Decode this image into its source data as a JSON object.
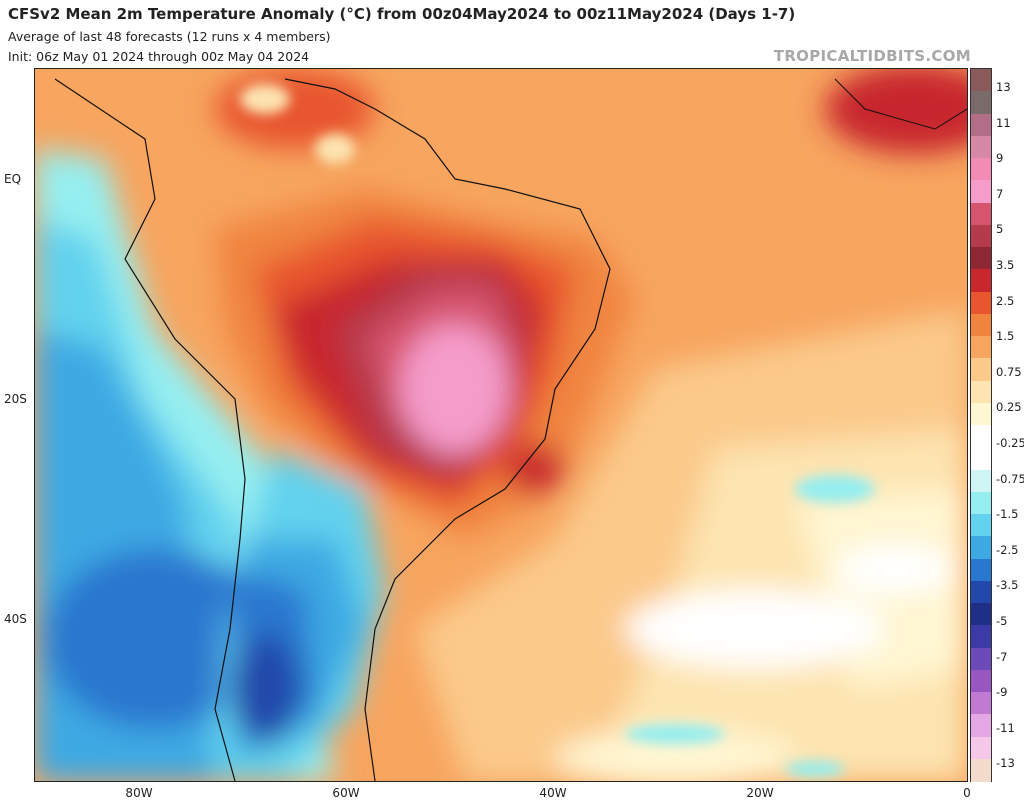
{
  "header": {
    "title": "CFSv2 Mean 2m Temperature Anomaly (°C) from 00z04May2024 to 00z11May2024 (Days 1-7)",
    "subtitle1": "Average of last 48 forecasts (12 runs x 4 members)",
    "subtitle2": "Init: 06z May 01 2024 through 00z May 04 2024",
    "brand": "TROPICALTIDBITS.COM"
  },
  "axes": {
    "lat_labels": [
      "EQ",
      "20S",
      "40S"
    ],
    "lon_labels": [
      "80W",
      "60W",
      "40W",
      "20W",
      "0"
    ]
  },
  "colorbar": {
    "labels": [
      "13",
      "11",
      "9",
      "7",
      "5",
      "3.5",
      "2.5",
      "1.5",
      "0.75",
      "0.25",
      "-0.25",
      "-0.75",
      "-1.5",
      "-2.5",
      "-3.5",
      "-5",
      "-7",
      "-9",
      "-11",
      "-13"
    ],
    "colors": [
      "#8a5a5a",
      "#7b6a6a",
      "#b26d87",
      "#d689a5",
      "#f28cb5",
      "#f59ccb",
      "#d7546e",
      "#b53a4c",
      "#8c2733",
      "#c8282d",
      "#e8552f",
      "#f0843f",
      "#f7a55f",
      "#fbc98a",
      "#fde4b0",
      "#fff6d2",
      "#ffffff",
      "#ffffff",
      "#cff6f4",
      "#95eef0",
      "#62d2ee",
      "#3da9e3",
      "#2a77cf",
      "#2348ab",
      "#1f2f85",
      "#3b3aa6",
      "#6c4bb8",
      "#9856c0",
      "#c07ad2",
      "#e3a8e3",
      "#f5c8ea",
      "#f4dccc"
    ]
  },
  "map": {
    "region": "South America and South Atlantic",
    "warm_color": "#f7a55f",
    "cool_color": "#3da9e3"
  }
}
